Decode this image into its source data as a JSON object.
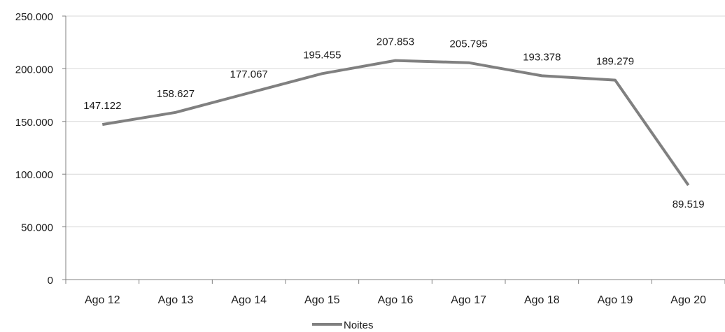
{
  "colors": {
    "line": "#808080",
    "grid": "#d9d9d9",
    "axis": "#808080",
    "text": "#1a1a1a"
  },
  "chart_data": {
    "type": "line",
    "categories": [
      "Ago 12",
      "Ago 13",
      "Ago 14",
      "Ago 15",
      "Ago 16",
      "Ago 17",
      "Ago 18",
      "Ago 19",
      "Ago 20"
    ],
    "series": [
      {
        "name": "Noites",
        "values": [
          147122,
          158627,
          177067,
          195455,
          207853,
          205795,
          193378,
          189279,
          89519
        ],
        "labels": [
          "147.122",
          "158.627",
          "177.067",
          "195.455",
          "207.853",
          "205.795",
          "193.378",
          "189.279",
          "89.519"
        ]
      }
    ],
    "ylim": [
      0,
      250000
    ],
    "yticks": [
      0,
      50000,
      100000,
      150000,
      200000,
      250000
    ],
    "ytick_labels": [
      "0",
      "50.000",
      "100.000",
      "150.000",
      "200.000",
      "250.000"
    ],
    "grid": true,
    "legend": "bottom"
  }
}
